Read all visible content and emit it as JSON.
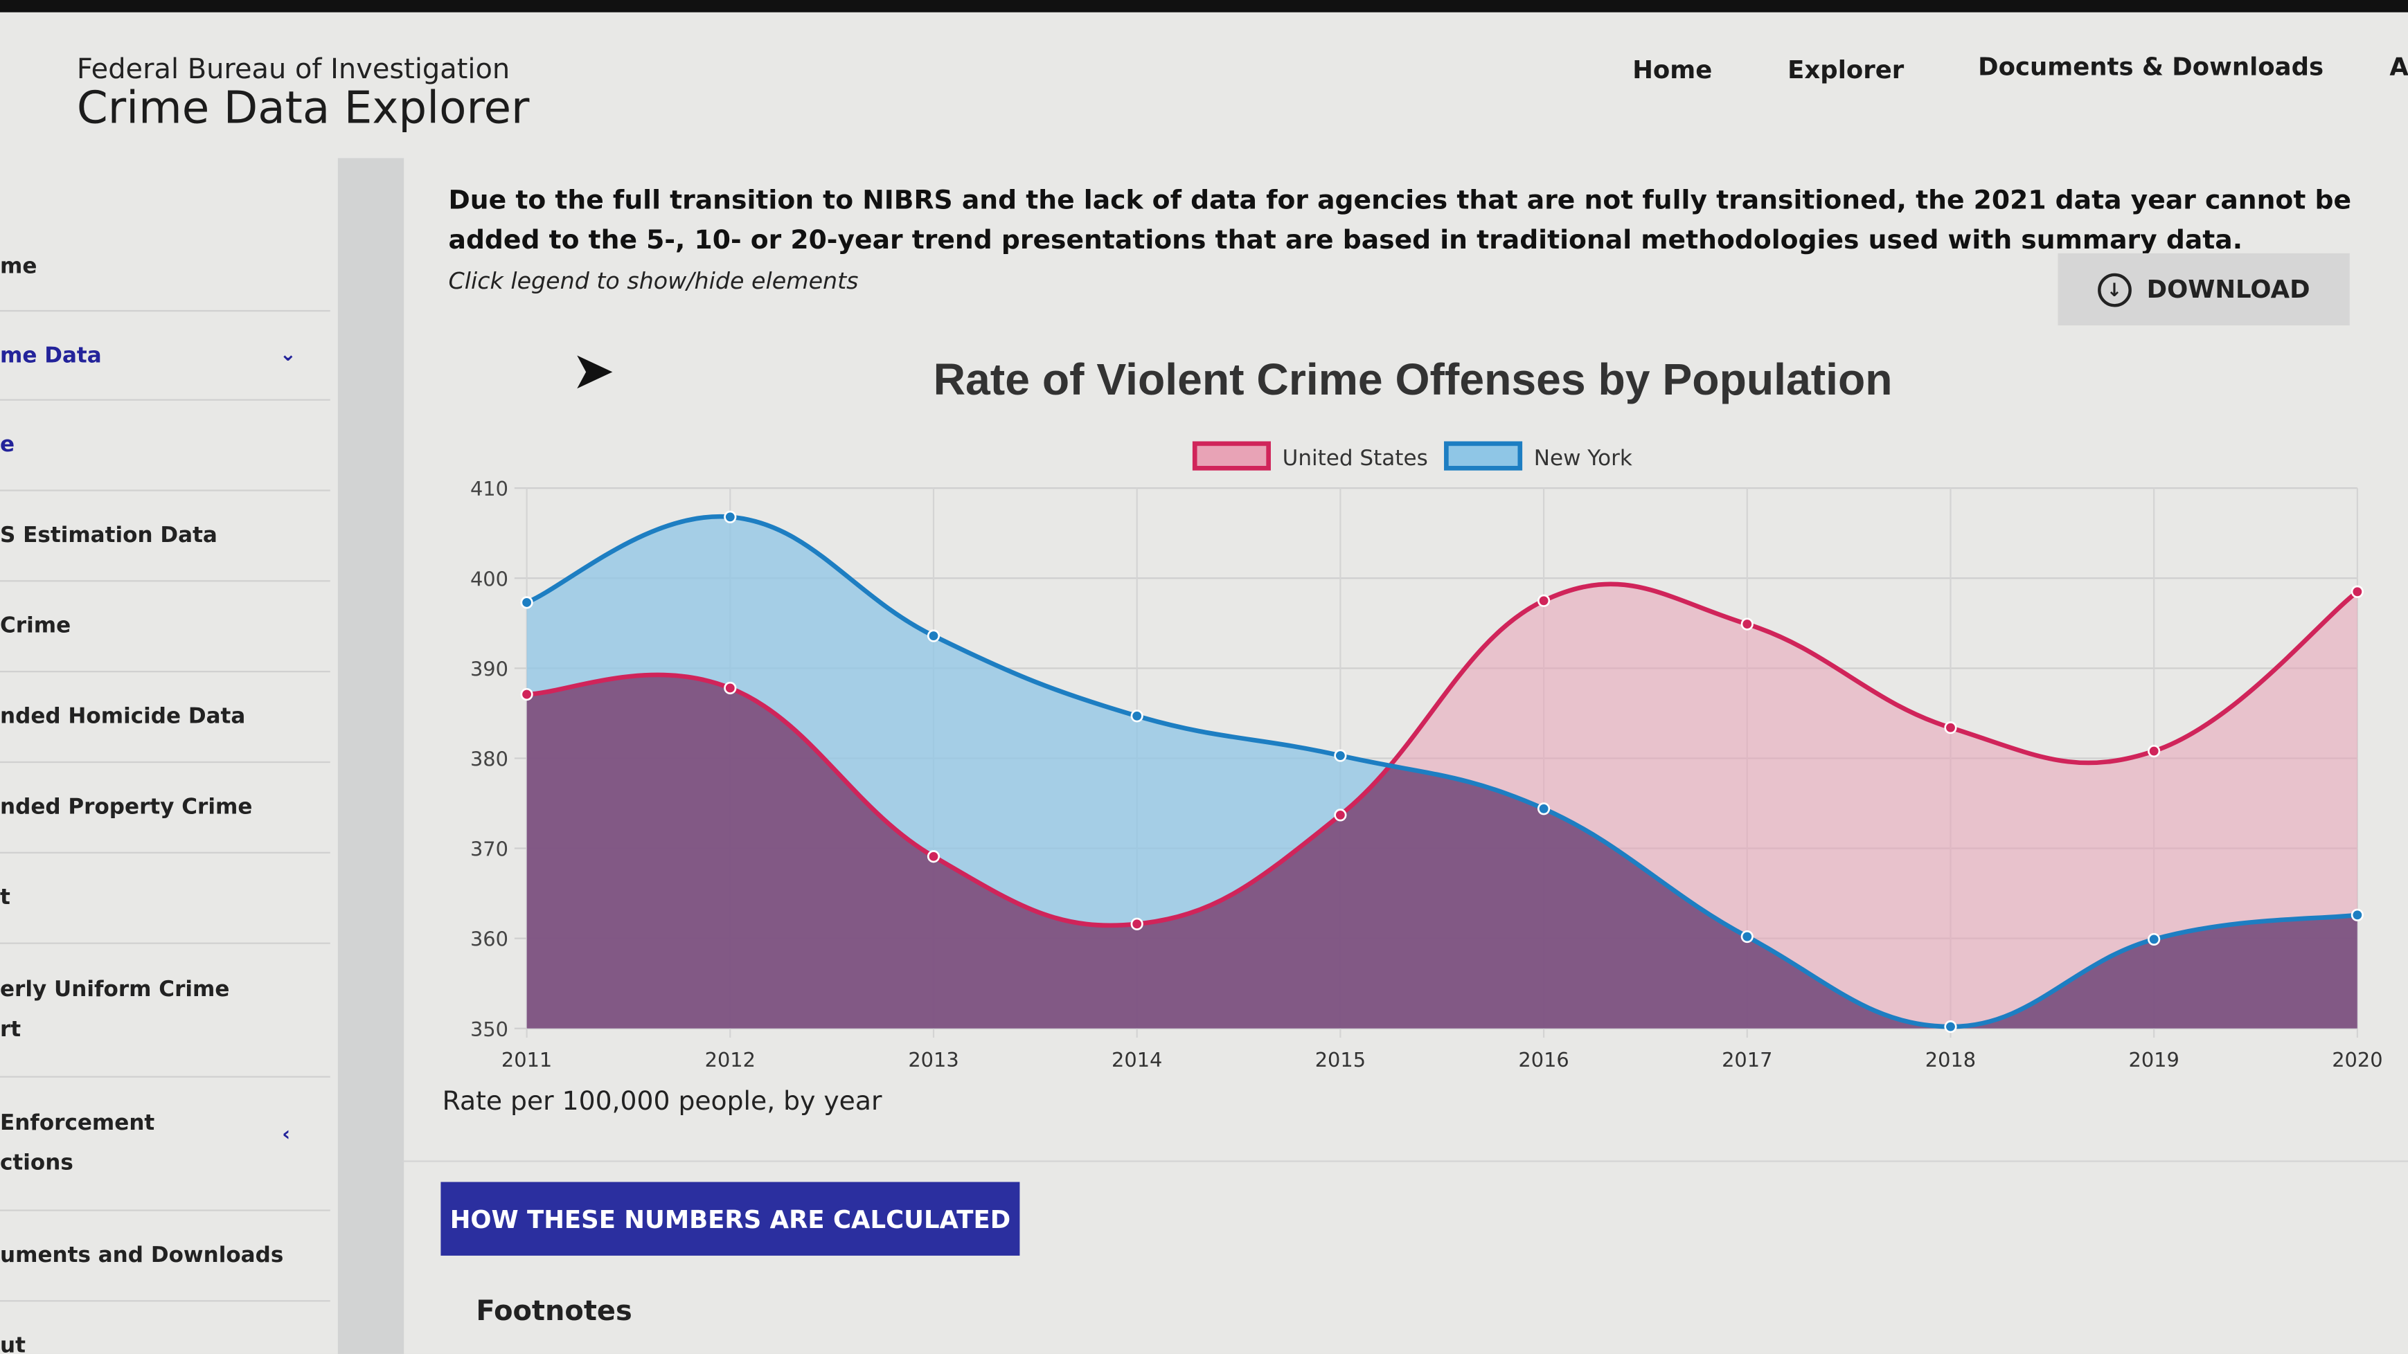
{
  "header": {
    "agency": "Federal Bureau of Investigation",
    "title": "Crime Data Explorer"
  },
  "nav": [
    {
      "label": "Home"
    },
    {
      "label": "Explorer"
    },
    {
      "label": "Documents & Downloads"
    },
    {
      "label": "A"
    }
  ],
  "sidebar": {
    "items": [
      {
        "label": "me"
      },
      {
        "label": "me Data",
        "active": true,
        "icon": "chevron-down-icon"
      },
      {
        "label": "e",
        "active": true
      },
      {
        "label": "S Estimation Data"
      },
      {
        "label": "Crime"
      },
      {
        "label": "nded Homicide Data"
      },
      {
        "label": "nded Property Crime"
      },
      {
        "label": "t"
      },
      {
        "label": "erly Uniform Crime",
        "label2": "rt"
      },
      {
        "label": "Enforcement",
        "label2": "ctions",
        "icon": "chevron-left-icon"
      },
      {
        "label": "uments and Downloads"
      },
      {
        "label": "ut"
      }
    ]
  },
  "main": {
    "notice": "Due to the full transition to NIBRS and the lack of data for agencies that are not fully transitioned, the 2021 data year cannot be added to the 5-, 10- or 20-year trend presentations that are based in traditional methodologies used with summary data.",
    "hint": "Click legend to show/hide elements",
    "download_label": "DOWNLOAD",
    "calc_button": "HOW THESE NUMBERS ARE CALCULATED",
    "footnotes": "Footnotes"
  },
  "chart_data": {
    "type": "area",
    "title": "Rate of Violent Crime Offenses by Population",
    "xlabel": "Rate per 100,000 people, by year",
    "ylabel": "",
    "ylim": [
      350,
      410
    ],
    "yticks": [
      350,
      360,
      370,
      380,
      390,
      400,
      410
    ],
    "grid": true,
    "legend": "top",
    "categories": [
      "2011",
      "2012",
      "2013",
      "2014",
      "2015",
      "2016",
      "2017",
      "2018",
      "2019",
      "2020"
    ],
    "series": [
      {
        "name": "United States",
        "color": "#d0245a",
        "fill": "#e8a3b6",
        "values": [
          387.1,
          387.8,
          369.1,
          361.6,
          373.7,
          397.5,
          394.9,
          383.4,
          380.8,
          398.5
        ]
      },
      {
        "name": "New York",
        "color": "#1d7ec2",
        "fill": "#8fc6e6",
        "values": [
          397.3,
          406.8,
          393.6,
          384.7,
          380.3,
          374.4,
          360.2,
          350.2,
          359.9,
          362.6
        ]
      }
    ]
  }
}
